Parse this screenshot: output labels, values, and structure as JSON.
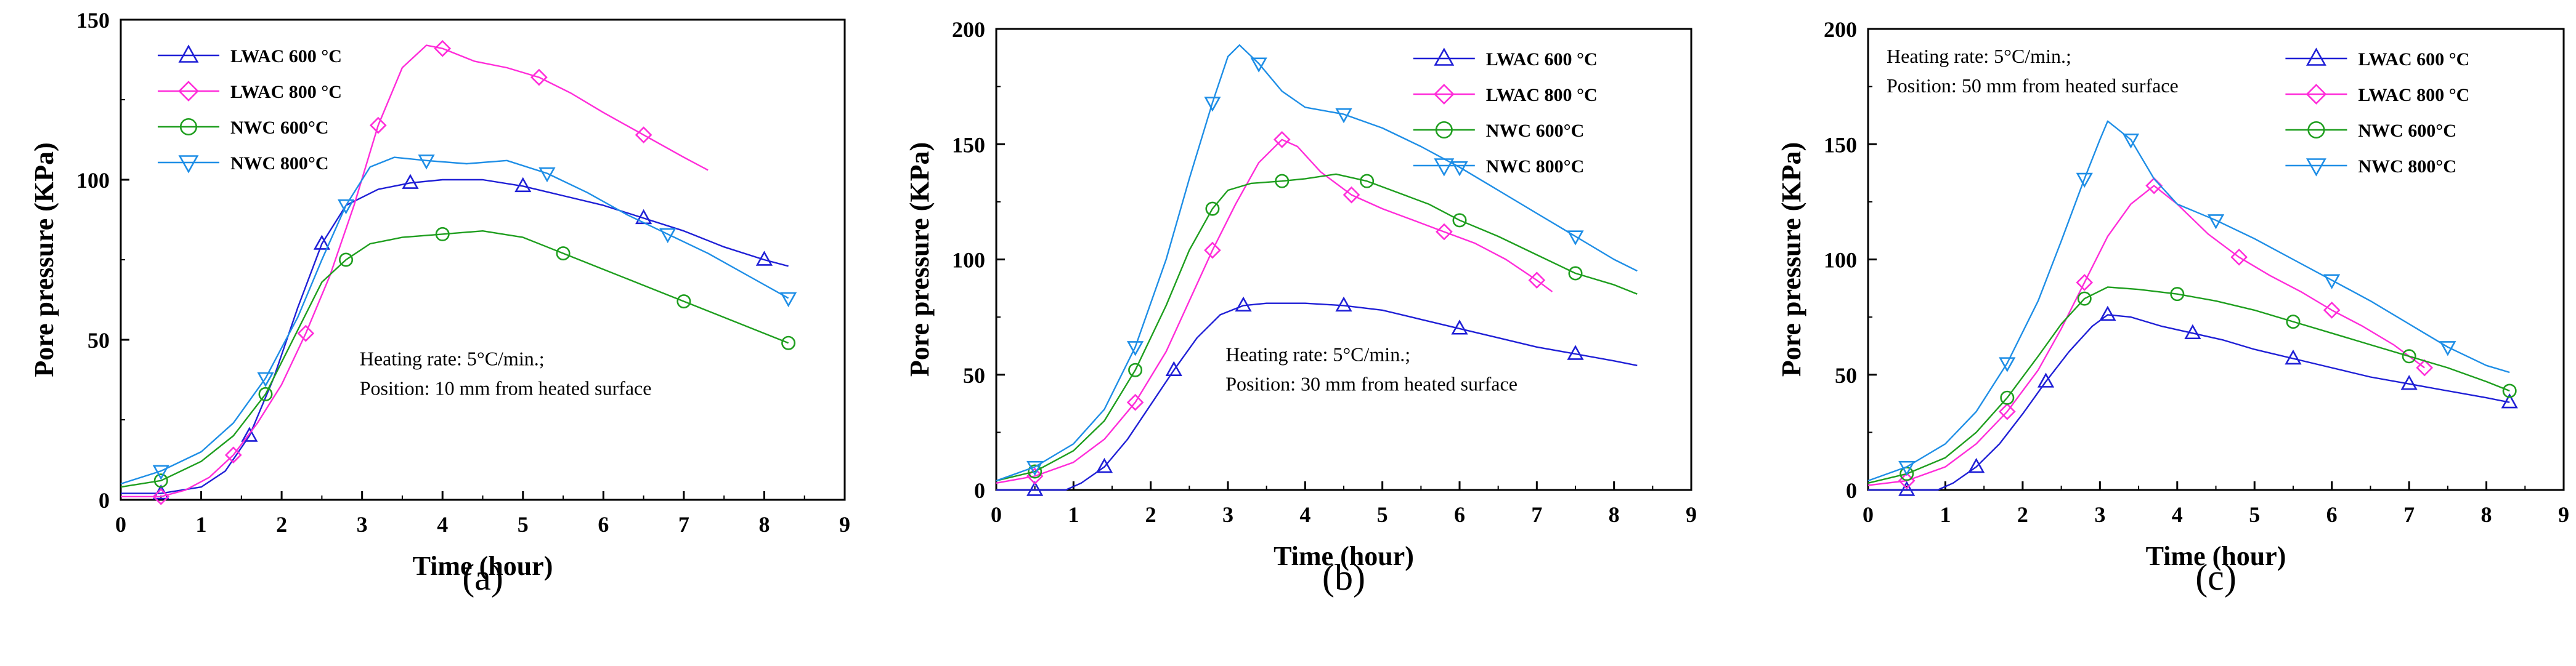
{
  "chart_data": [
    {
      "type": "line",
      "panel_label": "(a)",
      "xlabel": "Time (hour)",
      "ylabel": "Pore pressure (KPa)",
      "xlim": [
        0,
        9
      ],
      "ylim": [
        0,
        150
      ],
      "xticks": [
        0,
        1,
        2,
        3,
        4,
        5,
        6,
        7,
        8,
        9
      ],
      "yticks": [
        0,
        50,
        100,
        150
      ],
      "legend_position": "top-left",
      "annotation_position": "bottom-center",
      "annotation": [
        "Heating rate: 5°C/min.;",
        "Position: 10 mm from heated surface"
      ],
      "series": [
        {
          "name": "LWAC 600 °C",
          "color": "#1f1fd6",
          "marker": "triangle",
          "x": [
            0,
            0.5,
            1.0,
            1.3,
            1.6,
            1.9,
            2.2,
            2.5,
            2.8,
            3.2,
            3.6,
            4.0,
            4.5,
            5.0,
            5.5,
            6.0,
            6.5,
            7.0,
            7.5,
            8.0,
            8.3
          ],
          "y": [
            2,
            2,
            4,
            9,
            20,
            38,
            60,
            80,
            92,
            97,
            99,
            100,
            100,
            98,
            95,
            92,
            88,
            84,
            79,
            75,
            73
          ]
        },
        {
          "name": "LWAC 800 °C",
          "color": "#ff2cd9",
          "marker": "diamond",
          "x": [
            0,
            0.5,
            0.8,
            1.1,
            1.4,
            1.7,
            2.0,
            2.3,
            2.6,
            2.9,
            3.2,
            3.5,
            3.8,
            4.0,
            4.4,
            4.8,
            5.2,
            5.6,
            6.0,
            6.5,
            7.0,
            7.3
          ],
          "y": [
            1,
            1,
            3,
            7,
            14,
            24,
            36,
            52,
            70,
            92,
            117,
            135,
            142,
            141,
            137,
            135,
            132,
            127,
            121,
            114,
            107,
            103
          ]
        },
        {
          "name": "NWC 600°C",
          "color": "#1e9e1e",
          "marker": "circle",
          "x": [
            0,
            0.5,
            1.0,
            1.4,
            1.8,
            2.2,
            2.5,
            2.8,
            3.1,
            3.5,
            4.0,
            4.5,
            5.0,
            5.5,
            6.0,
            6.5,
            7.0,
            7.5,
            8.0,
            8.3
          ],
          "y": [
            4,
            6,
            12,
            20,
            33,
            53,
            68,
            75,
            80,
            82,
            83,
            84,
            82,
            77,
            72,
            67,
            62,
            57,
            52,
            49
          ]
        },
        {
          "name": "NWC 800°C",
          "color": "#1e8ee6",
          "marker": "invtriangle",
          "x": [
            0,
            0.5,
            1.0,
            1.4,
            1.8,
            2.2,
            2.5,
            2.8,
            3.1,
            3.4,
            3.8,
            4.3,
            4.8,
            5.3,
            5.8,
            6.3,
            6.8,
            7.3,
            7.8,
            8.3
          ],
          "y": [
            5,
            9,
            15,
            24,
            38,
            57,
            75,
            92,
            104,
            107,
            106,
            105,
            106,
            102,
            96,
            89,
            83,
            77,
            70,
            63
          ]
        }
      ]
    },
    {
      "type": "line",
      "panel_label": "(b)",
      "xlabel": "Time (hour)",
      "ylabel": "Pore pressure (KPa)",
      "xlim": [
        0,
        9
      ],
      "ylim": [
        0,
        200
      ],
      "xticks": [
        0,
        1,
        2,
        3,
        4,
        5,
        6,
        7,
        8,
        9
      ],
      "yticks": [
        0,
        50,
        100,
        150,
        200
      ],
      "legend_position": "top-right",
      "annotation_position": "bottom-center",
      "annotation": [
        "Heating rate: 5°C/min.;",
        "Position: 30 mm from heated surface"
      ],
      "series": [
        {
          "name": "LWAC 600 °C",
          "color": "#1f1fd6",
          "marker": "triangle",
          "x": [
            0,
            0.5,
            0.9,
            1.1,
            1.4,
            1.7,
            2.0,
            2.3,
            2.6,
            2.9,
            3.2,
            3.5,
            4.0,
            4.5,
            5.0,
            5.5,
            6.0,
            6.5,
            7.0,
            7.5,
            8.0,
            8.3
          ],
          "y": [
            0,
            0,
            0,
            3,
            10,
            22,
            37,
            52,
            66,
            76,
            80,
            81,
            81,
            80,
            78,
            74,
            70,
            66,
            62,
            59,
            56,
            54
          ]
        },
        {
          "name": "LWAC 800 °C",
          "color": "#ff2cd9",
          "marker": "diamond",
          "x": [
            0,
            0.5,
            1.0,
            1.4,
            1.8,
            2.2,
            2.5,
            2.8,
            3.1,
            3.4,
            3.7,
            3.9,
            4.2,
            4.6,
            5.0,
            5.4,
            5.8,
            6.2,
            6.6,
            7.0,
            7.2
          ],
          "y": [
            3,
            6,
            12,
            22,
            38,
            60,
            82,
            104,
            124,
            142,
            152,
            149,
            138,
            128,
            122,
            117,
            112,
            107,
            100,
            91,
            86
          ]
        },
        {
          "name": "NWC 600°C",
          "color": "#1e9e1e",
          "marker": "circle",
          "x": [
            0,
            0.5,
            1.0,
            1.4,
            1.8,
            2.2,
            2.5,
            2.8,
            3.0,
            3.3,
            3.7,
            4.0,
            4.4,
            4.8,
            5.2,
            5.6,
            6.0,
            6.5,
            7.0,
            7.5,
            8.0,
            8.3
          ],
          "y": [
            4,
            8,
            17,
            30,
            52,
            80,
            104,
            122,
            130,
            133,
            134,
            135,
            137,
            134,
            129,
            124,
            117,
            110,
            102,
            94,
            89,
            85
          ]
        },
        {
          "name": "NWC 800°C",
          "color": "#1e8ee6",
          "marker": "invtriangle",
          "x": [
            0,
            0.5,
            1.0,
            1.4,
            1.8,
            2.2,
            2.5,
            2.8,
            3.0,
            3.15,
            3.4,
            3.7,
            4.0,
            4.5,
            5.0,
            5.5,
            6.0,
            6.5,
            7.0,
            7.5,
            8.0,
            8.3
          ],
          "y": [
            4,
            10,
            20,
            35,
            62,
            100,
            135,
            168,
            188,
            193,
            185,
            173,
            166,
            163,
            157,
            149,
            140,
            130,
            120,
            110,
            100,
            95
          ]
        }
      ]
    },
    {
      "type": "line",
      "panel_label": "(c)",
      "xlabel": "Time (hour)",
      "ylabel": "Pore pressure (KPa)",
      "xlim": [
        0,
        9
      ],
      "ylim": [
        0,
        200
      ],
      "xticks": [
        0,
        1,
        2,
        3,
        4,
        5,
        6,
        7,
        8,
        9
      ],
      "yticks": [
        0,
        50,
        100,
        150,
        200
      ],
      "legend_position": "top-right",
      "annotation_position": "top-left",
      "annotation": [
        "Heating rate: 5°C/min.;",
        "Position: 50 mm from heated surface"
      ],
      "series": [
        {
          "name": "LWAC 600 °C",
          "color": "#1f1fd6",
          "marker": "triangle",
          "x": [
            0,
            0.5,
            0.9,
            1.1,
            1.4,
            1.7,
            2.0,
            2.3,
            2.6,
            2.9,
            3.1,
            3.4,
            3.8,
            4.2,
            4.6,
            5.0,
            5.5,
            6.0,
            6.5,
            7.0,
            7.5,
            8.0,
            8.3
          ],
          "y": [
            0,
            0,
            0,
            3,
            10,
            20,
            33,
            47,
            60,
            71,
            76,
            75,
            71,
            68,
            65,
            61,
            57,
            53,
            49,
            46,
            43,
            40,
            38
          ]
        },
        {
          "name": "LWAC 800 °C",
          "color": "#ff2cd9",
          "marker": "diamond",
          "x": [
            0,
            0.5,
            1.0,
            1.4,
            1.8,
            2.2,
            2.5,
            2.8,
            3.1,
            3.4,
            3.7,
            4.0,
            4.4,
            4.8,
            5.2,
            5.6,
            6.0,
            6.4,
            6.8,
            7.2
          ],
          "y": [
            2,
            4,
            10,
            20,
            34,
            52,
            70,
            90,
            110,
            124,
            132,
            124,
            111,
            101,
            93,
            86,
            78,
            71,
            63,
            53
          ]
        },
        {
          "name": "NWC 600°C",
          "color": "#1e9e1e",
          "marker": "circle",
          "x": [
            0,
            0.5,
            1.0,
            1.4,
            1.8,
            2.2,
            2.5,
            2.8,
            3.1,
            3.5,
            4.0,
            4.5,
            5.0,
            5.5,
            6.0,
            6.5,
            7.0,
            7.5,
            8.0,
            8.3
          ],
          "y": [
            3,
            7,
            14,
            25,
            40,
            58,
            72,
            83,
            88,
            87,
            85,
            82,
            78,
            73,
            68,
            63,
            58,
            53,
            47,
            43
          ]
        },
        {
          "name": "NWC 800°C",
          "color": "#1e8ee6",
          "marker": "invtriangle",
          "x": [
            0,
            0.5,
            1.0,
            1.4,
            1.8,
            2.2,
            2.5,
            2.8,
            3.0,
            3.1,
            3.4,
            3.7,
            4.0,
            4.5,
            5.0,
            5.5,
            6.0,
            6.5,
            7.0,
            7.5,
            8.0,
            8.3
          ],
          "y": [
            4,
            10,
            20,
            34,
            55,
            82,
            108,
            135,
            152,
            160,
            152,
            135,
            124,
            117,
            109,
            100,
            91,
            82,
            72,
            62,
            54,
            51
          ]
        }
      ]
    }
  ]
}
